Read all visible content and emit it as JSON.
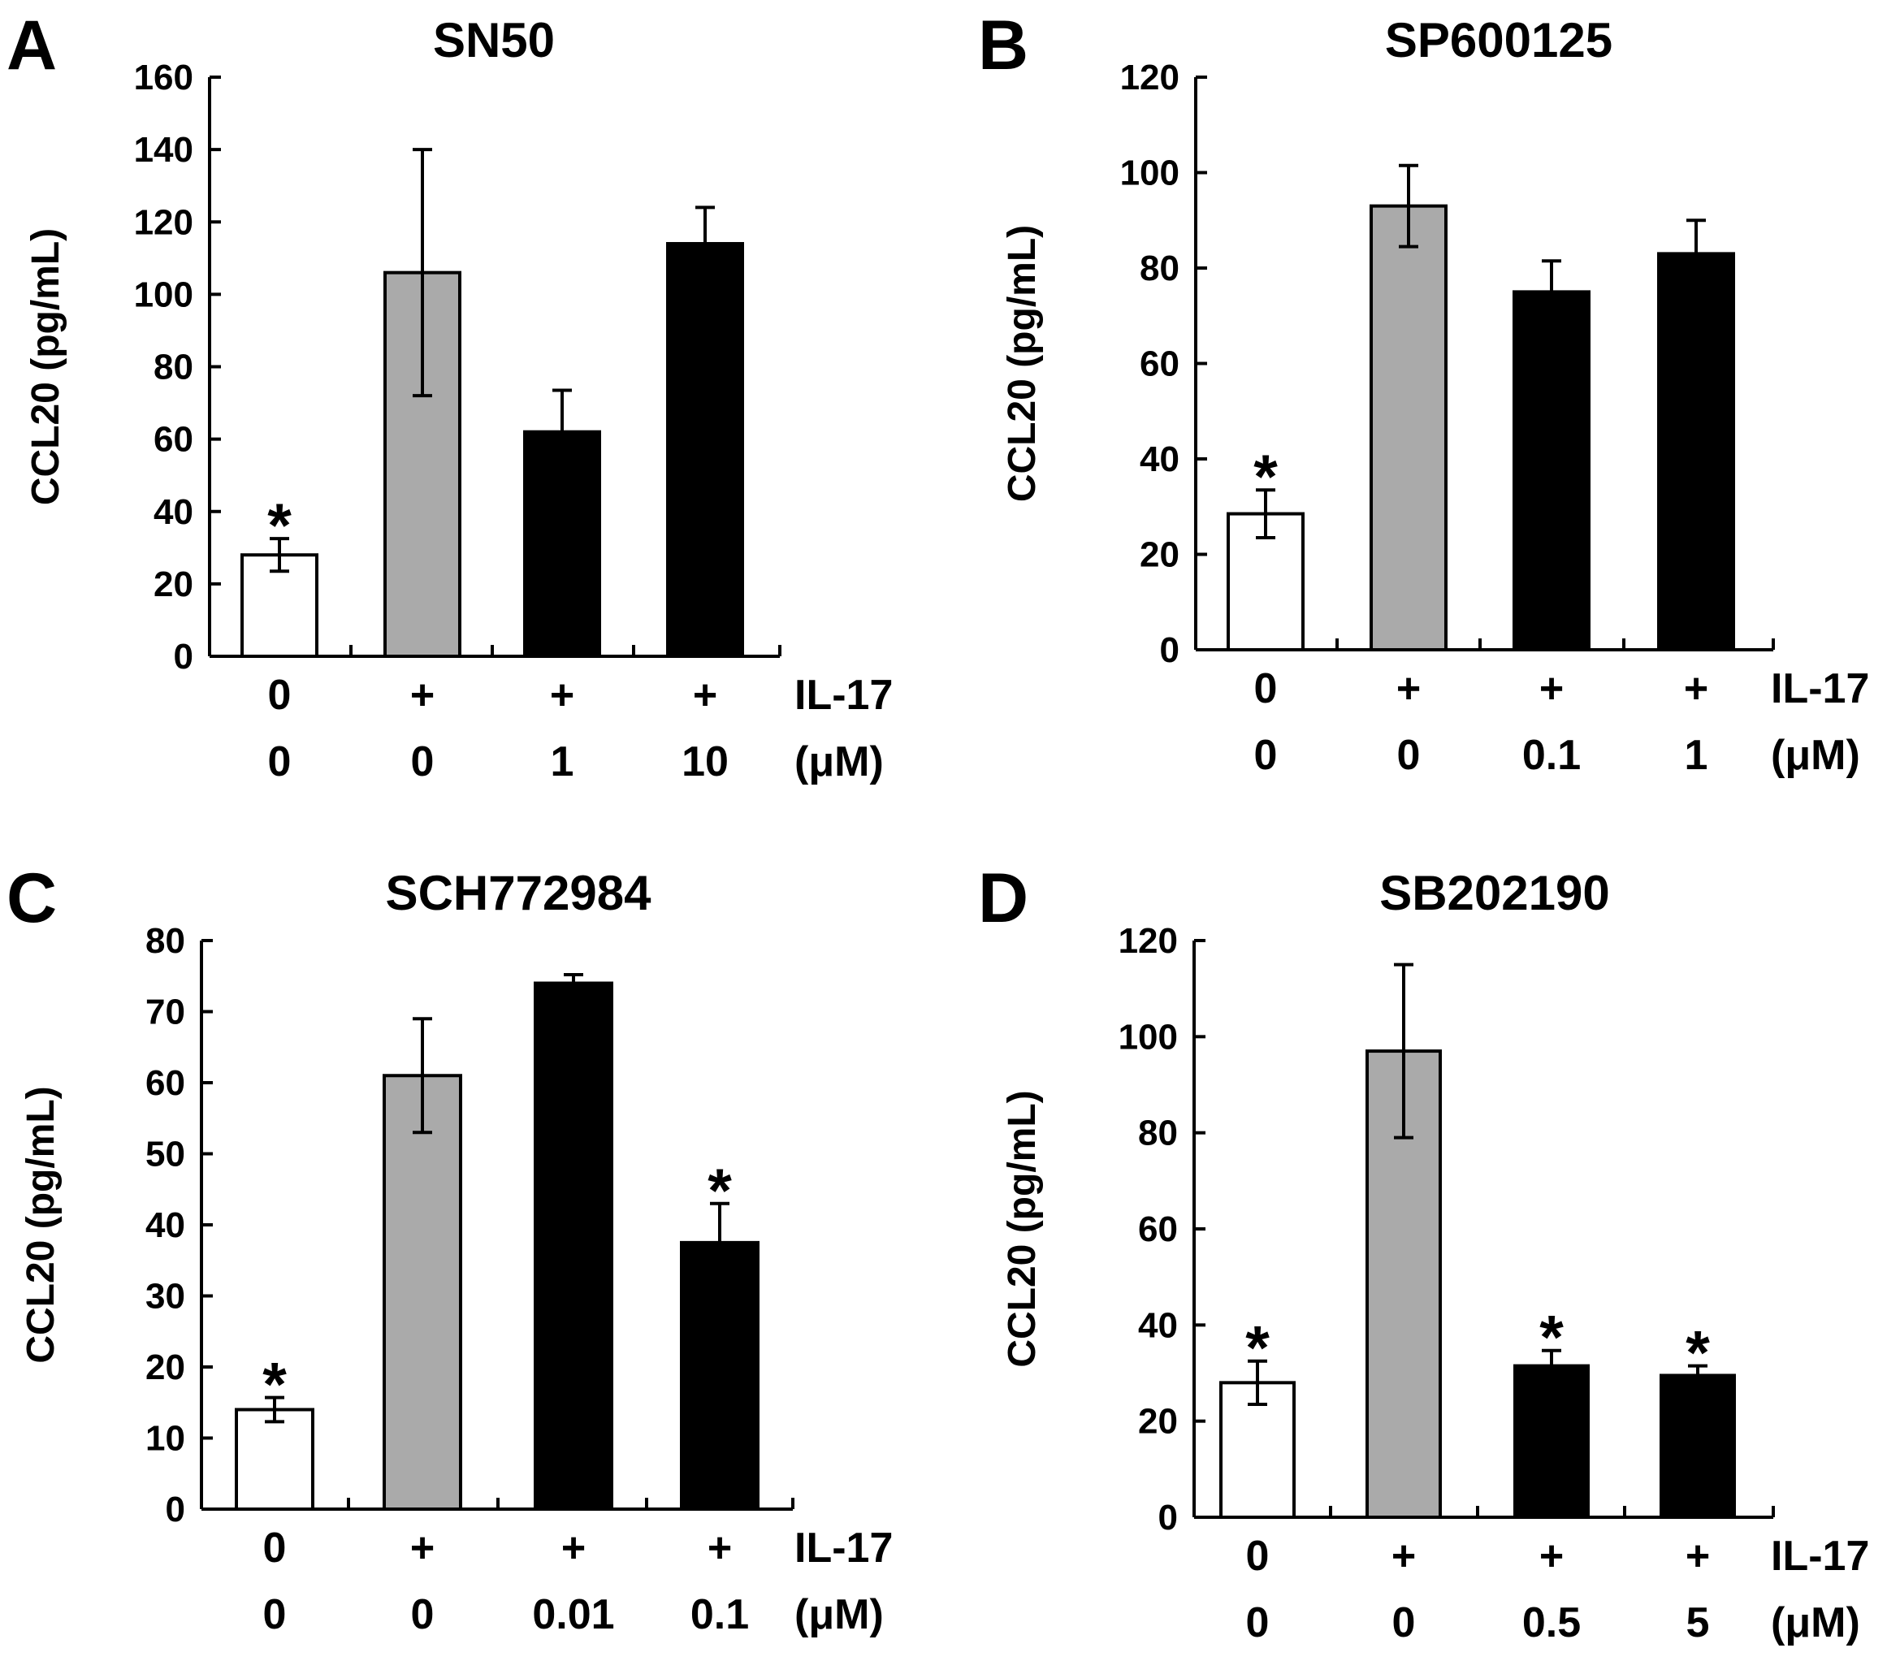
{
  "figure_id_labels": [
    "A",
    "B",
    "C",
    "D"
  ],
  "chart_data": [
    {
      "panel": "A",
      "type": "bar",
      "title": "SN50",
      "ylabel": "CCL20 (pg/mL)",
      "ylim": [
        0,
        160
      ],
      "yticks": [
        0,
        20,
        40,
        60,
        80,
        100,
        120,
        140,
        160
      ],
      "il17_labels": [
        "0",
        "+",
        "+",
        "+"
      ],
      "il17_row_label": "IL-17",
      "dose_labels": [
        "0",
        "0",
        "1",
        "10"
      ],
      "dose_unit_label": "(μM)",
      "values": [
        28,
        106,
        62,
        114
      ],
      "errors": [
        4.5,
        34,
        11.5,
        10
      ],
      "fills": [
        "#ffffff",
        "#aaaaaa",
        "#000000",
        "#000000"
      ],
      "significant": [
        "*",
        "",
        "",
        ""
      ]
    },
    {
      "panel": "B",
      "type": "bar",
      "title": "SP600125",
      "ylabel": "CCL20 (pg/mL)",
      "ylim": [
        0,
        120
      ],
      "yticks": [
        0,
        20,
        40,
        60,
        80,
        100,
        120
      ],
      "il17_labels": [
        "0",
        "+",
        "+",
        "+"
      ],
      "il17_row_label": "IL-17",
      "dose_labels": [
        "0",
        "0",
        "0.1",
        "1"
      ],
      "dose_unit_label": "(μM)",
      "values": [
        28.5,
        93,
        75,
        83
      ],
      "errors": [
        5,
        8.5,
        6.5,
        7
      ],
      "fills": [
        "#ffffff",
        "#aaaaaa",
        "#000000",
        "#000000"
      ],
      "significant": [
        "*",
        "",
        "",
        ""
      ]
    },
    {
      "panel": "C",
      "type": "bar",
      "title": "SCH772984",
      "ylabel": "CCL20 (pg/mL)",
      "ylim": [
        0,
        80
      ],
      "yticks": [
        0,
        10,
        20,
        30,
        40,
        50,
        60,
        70,
        80
      ],
      "il17_labels": [
        "0",
        "+",
        "+",
        "+"
      ],
      "il17_row_label": "IL-17",
      "dose_labels": [
        "0",
        "0",
        "0.01",
        "0.1"
      ],
      "dose_unit_label": "(μM)",
      "values": [
        14,
        61,
        74,
        37.5
      ],
      "errors": [
        1.7,
        8,
        1.2,
        5.5
      ],
      "fills": [
        "#ffffff",
        "#aaaaaa",
        "#000000",
        "#000000"
      ],
      "significant": [
        "*",
        "",
        "",
        "*"
      ]
    },
    {
      "panel": "D",
      "type": "bar",
      "title": "SB202190",
      "ylabel": "CCL20 (pg/mL)",
      "ylim": [
        0,
        120
      ],
      "yticks": [
        0,
        20,
        40,
        60,
        80,
        100,
        120
      ],
      "il17_labels": [
        "0",
        "+",
        "+",
        "+"
      ],
      "il17_row_label": "IL-17",
      "dose_labels": [
        "0",
        "0",
        "0.5",
        "5"
      ],
      "dose_unit_label": "(μM)",
      "values": [
        28,
        97,
        31.5,
        29.5
      ],
      "errors": [
        4.5,
        18,
        3.2,
        2
      ],
      "fills": [
        "#ffffff",
        "#aaaaaa",
        "#000000",
        "#000000"
      ],
      "significant": [
        "*",
        "",
        "*",
        "*"
      ]
    }
  ]
}
